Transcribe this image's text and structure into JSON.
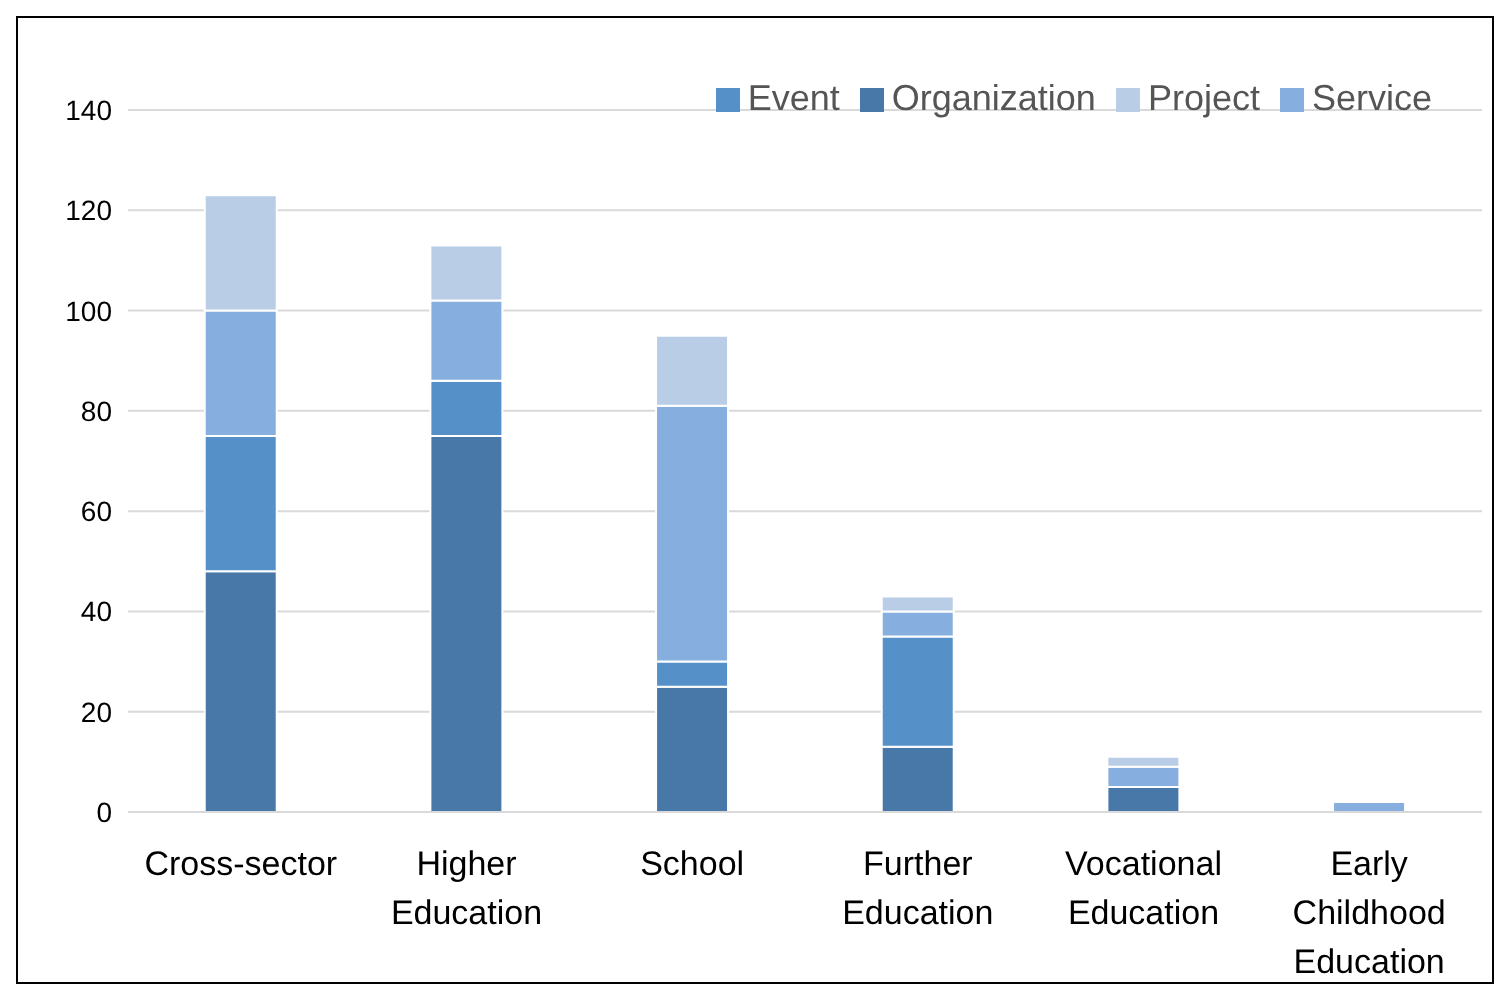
{
  "chart_data": {
    "type": "bar",
    "stacked": true,
    "categories": [
      "Cross-sector",
      "Higher Education",
      "School",
      "Further Education",
      "Vocational Education",
      "Early Childhood Education"
    ],
    "series": [
      {
        "name": "Organization",
        "color": "#4878a8",
        "values": [
          48,
          75,
          25,
          13,
          5,
          0
        ]
      },
      {
        "name": "Event",
        "color": "#5591c8",
        "values": [
          27,
          11,
          5,
          22,
          0,
          0
        ]
      },
      {
        "name": "Service",
        "color": "#86aede",
        "values": [
          25,
          16,
          51,
          5,
          4,
          2
        ]
      },
      {
        "name": "Project",
        "color": "#b9cde6",
        "values": [
          23,
          11,
          14,
          3,
          2,
          0
        ]
      }
    ],
    "ylim": [
      0,
      140
    ],
    "yticks": [
      0,
      20,
      40,
      60,
      80,
      100,
      120,
      140
    ],
    "grid": "y",
    "legend": "top right"
  }
}
